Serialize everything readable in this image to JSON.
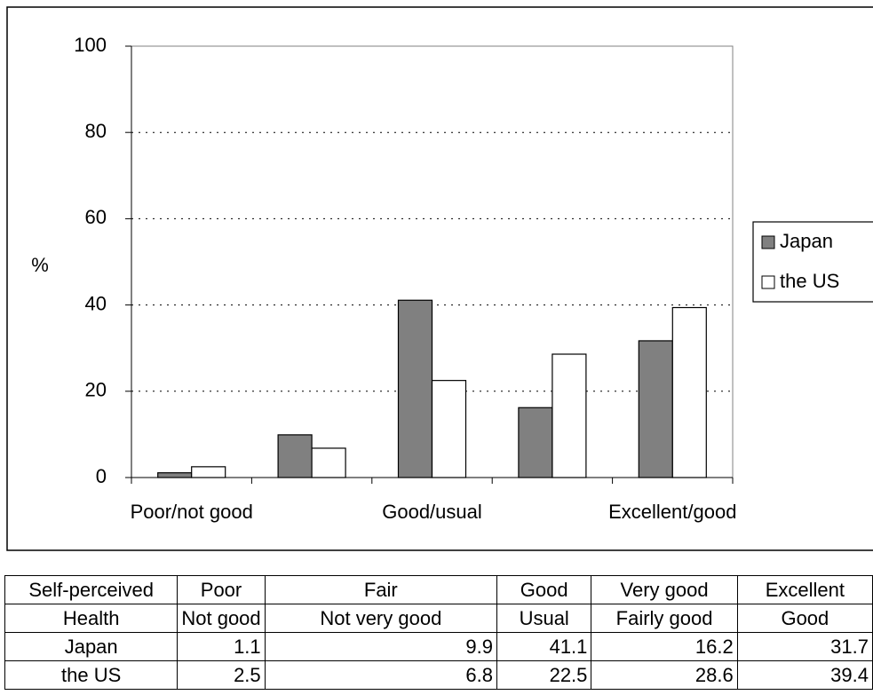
{
  "chart_data": {
    "type": "bar",
    "y_label": "%",
    "categories": [
      "Poor/not good",
      null,
      "Good/usual",
      null,
      "Excellent/good"
    ],
    "series": [
      {
        "name": "Japan",
        "color": "#808080",
        "values": [
          1.1,
          9.9,
          41.1,
          16.2,
          31.7
        ]
      },
      {
        "name": "the US",
        "color": "#ffffff",
        "values": [
          2.5,
          6.8,
          22.5,
          28.6,
          39.4
        ]
      }
    ],
    "ylim": [
      0,
      100
    ],
    "yticks": [
      0,
      20,
      40,
      60,
      80,
      100
    ],
    "grid": true,
    "legend": "right"
  },
  "table": {
    "header": [
      [
        "Self-perceived",
        "Poor",
        "Fair",
        "Good",
        "Very good",
        "Excellent"
      ],
      [
        "Health",
        "Not good",
        "Not very good",
        "Usual",
        "Fairly good",
        "Good"
      ]
    ]
  }
}
